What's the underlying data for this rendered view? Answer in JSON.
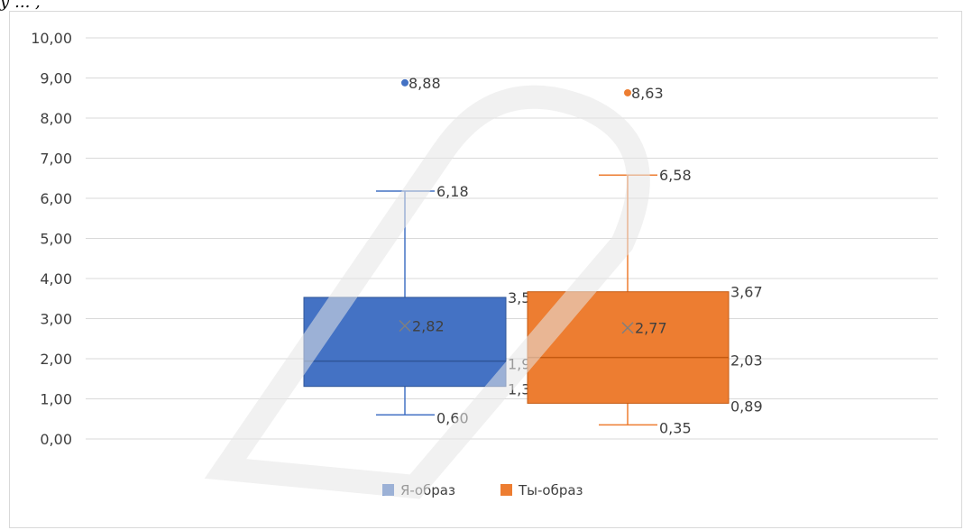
{
  "top_fragment": "у ... ,",
  "chart_data": {
    "type": "box",
    "ylim": [
      0,
      10
    ],
    "y_ticks": [
      "0,00",
      "1,00",
      "2,00",
      "3,00",
      "4,00",
      "5,00",
      "6,00",
      "7,00",
      "8,00",
      "9,00",
      "10,00"
    ],
    "grid": true,
    "legend_position": "bottom",
    "series": [
      {
        "name": "Я-образ",
        "color": "#4472c4",
        "min": 0.6,
        "q1": 1.31,
        "median": 1.94,
        "q3": 3.53,
        "max": 6.18,
        "mean": 2.82,
        "outliers": [
          8.88
        ],
        "labels": {
          "min": "0,60",
          "q1": "1,31",
          "median": "1,94",
          "q3": "3,53",
          "max": "6,18",
          "mean": "2,82",
          "outlier": "8,88"
        }
      },
      {
        "name": "Ты-образ",
        "color": "#ed7d31",
        "min": 0.35,
        "q1": 0.89,
        "median": 2.03,
        "q3": 3.67,
        "max": 6.58,
        "mean": 2.77,
        "outliers": [
          8.63
        ],
        "labels": {
          "min": "0,35",
          "q1": "0,89",
          "median": "2,03",
          "q3": "3,67",
          "max": "6,58",
          "mean": "2,77",
          "outlier": "8,63"
        }
      }
    ]
  }
}
